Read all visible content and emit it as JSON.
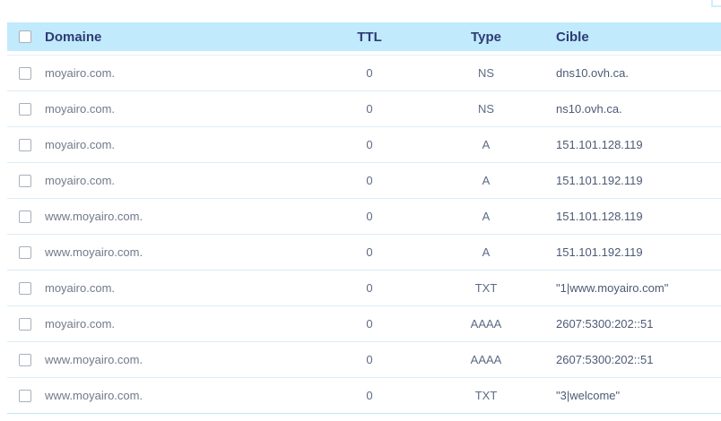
{
  "colors": {
    "header_bg": "#c1eafc",
    "header_text": "#2d3b73",
    "row_separator": "#d9edf7",
    "bottom_border": "#bfe5f2",
    "domain_text": "#707a8a",
    "value_text": "#4d5a74"
  },
  "table": {
    "columns": {
      "domain": "Domaine",
      "ttl": "TTL",
      "type": "Type",
      "cible": "Cible"
    },
    "rows": [
      {
        "domain": "moyairo.com.",
        "ttl": "0",
        "type": "NS",
        "cible": "dns10.ovh.ca."
      },
      {
        "domain": "moyairo.com.",
        "ttl": "0",
        "type": "NS",
        "cible": "ns10.ovh.ca."
      },
      {
        "domain": "moyairo.com.",
        "ttl": "0",
        "type": "A",
        "cible": "151.101.128.119"
      },
      {
        "domain": "moyairo.com.",
        "ttl": "0",
        "type": "A",
        "cible": "151.101.192.119"
      },
      {
        "domain": "www.moyairo.com.",
        "ttl": "0",
        "type": "A",
        "cible": "151.101.128.119"
      },
      {
        "domain": "www.moyairo.com.",
        "ttl": "0",
        "type": "A",
        "cible": "151.101.192.119"
      },
      {
        "domain": "moyairo.com.",
        "ttl": "0",
        "type": "TXT",
        "cible": "\"1|www.moyairo.com\""
      },
      {
        "domain": "moyairo.com.",
        "ttl": "0",
        "type": "AAAA",
        "cible": "2607:5300:202::51"
      },
      {
        "domain": "www.moyairo.com.",
        "ttl": "0",
        "type": "AAAA",
        "cible": "2607:5300:202::51"
      },
      {
        "domain": "www.moyairo.com.",
        "ttl": "0",
        "type": "TXT",
        "cible": "\"3|welcome\""
      }
    ]
  }
}
